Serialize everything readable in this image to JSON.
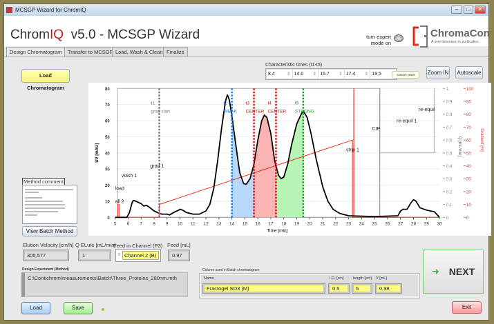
{
  "window": {
    "title": "MCSGP Wizard for ChromIQ",
    "minimize": "–",
    "maximize": "□",
    "close": "✕"
  },
  "header": {
    "app_name_pre": "Chrom",
    "app_name_iq": "IQ",
    "app_version": "  v5.0 - MCSGP Wizard",
    "expert_toggle_label_1": "turn expert",
    "expert_toggle_label_2": "mode on",
    "expert_mode_on": false,
    "brand_name": "ChromaCon",
    "brand_tagline": "A new dimension in purification"
  },
  "tabs": [
    {
      "label": "Design Chromatogram",
      "active": true
    },
    {
      "label": "Transfer to MCSGP"
    },
    {
      "label": "Load, Wash & Clean"
    },
    {
      "label": "Finalize"
    }
  ],
  "toolbar": {
    "load_chromatogram": "Load Chromatogram",
    "char_times_label": "Characteristic times (t1-t5)",
    "char_times": [
      "8.4",
      "14.0",
      "15.7",
      "17.4",
      "19.5"
    ],
    "reset_cursors": "cursors reset",
    "zoom_in": "Zoom IN",
    "autoscale": "Autoscale"
  },
  "method": {
    "comment_label": "Method comment",
    "view_batch_method": "View Batch Method"
  },
  "params": {
    "elution_velocity_label": "Elution Velocity [cm/h]",
    "elution_velocity": "305.577",
    "q_elute_label": "Q ELute [mL/min]",
    "q_elute": "1",
    "feed_channel_label": "Feed in Channel (P3)",
    "feed_channel": "Channel 2 (B)",
    "feed_label": "Feed [mL]",
    "feed": "0.97"
  },
  "design": {
    "label": "Design Experiment (Method)",
    "path": "C:\\Contichrom\\measurements\\Batch\\Three_Proteins_280nm.mth"
  },
  "column": {
    "label": "Column used in Batch chromatogram",
    "name_label": "Name",
    "name": "Fractogel SO3 (M)",
    "id_label": "I.D. [cm]",
    "id": "0.5",
    "length_label": "length [cm]",
    "length": "5",
    "v_label": "V [mL]",
    "v": "0.98"
  },
  "buttons": {
    "load": "Load",
    "save": "Save",
    "next": "NEXT",
    "exit": "Exit"
  },
  "chart_data": {
    "type": "line",
    "xlabel": "Time [min]",
    "ylabel": "UV [mAU]",
    "y2label": "Q [mL/min]",
    "y3label": "Gradient [%]",
    "xlim": [
      5,
      30
    ],
    "ylim": [
      0,
      80
    ],
    "y2lim": [
      0,
      1
    ],
    "y3lim": [
      0,
      100
    ],
    "xticks": [
      "5",
      "6",
      "7",
      "8",
      "9",
      "10",
      "11",
      "12",
      "13",
      "14",
      "15",
      "16",
      "17",
      "18",
      "19",
      "20",
      "21",
      "22",
      "23",
      "24",
      "25",
      "26",
      "27",
      "28",
      "29",
      "30"
    ],
    "yticks": [
      "0",
      "10",
      "20",
      "30",
      "40",
      "50",
      "60",
      "70",
      "80"
    ],
    "y2ticks": [
      "0",
      "0.1",
      "0.2",
      "0.3",
      "0.4",
      "0.5",
      "0.6",
      "0.7",
      "0.8",
      "0.9",
      "1"
    ],
    "y3ticks": [
      "0",
      "10",
      "20",
      "30",
      "40",
      "50",
      "60",
      "70",
      "80",
      "90",
      "100"
    ],
    "uv": {
      "x": [
        5,
        5.9,
        6.1,
        6.3,
        6.4,
        6.6,
        7,
        7.2,
        7.4,
        7.6,
        8,
        8.4,
        8.6,
        9,
        9.2,
        9.5,
        9.9,
        10,
        10.2,
        10.5,
        11,
        11.5,
        12,
        12.3,
        12.6,
        12.9,
        13.2,
        13.5,
        13.65,
        13.8,
        14,
        14.3,
        14.6,
        14.9,
        15.1,
        15.4,
        15.7,
        16,
        16.3,
        16.5,
        16.7,
        17,
        17.3,
        17.6,
        17.8,
        18,
        18.3,
        18.6,
        19,
        19.4,
        19.55,
        19.8,
        20.1,
        20.5,
        21,
        21.4,
        21.8,
        22.3,
        23,
        25,
        26.8,
        27,
        27.2,
        27.5,
        27.8,
        28,
        28.2,
        28.5,
        29,
        29.6,
        29.9,
        30
      ],
      "y": [
        0,
        0,
        3,
        9,
        10.5,
        10,
        8.5,
        7,
        7.5,
        6.5,
        4,
        2.5,
        2,
        2,
        1.5,
        3,
        4.5,
        5,
        4.5,
        3,
        2,
        2,
        4,
        8,
        18,
        35,
        55,
        72,
        76,
        73,
        63,
        45,
        28,
        21,
        20.5,
        24,
        33,
        48,
        60,
        63.5,
        62,
        52,
        35,
        26,
        24,
        25,
        33,
        45,
        58,
        65,
        65.5,
        62,
        52,
        36,
        19,
        10,
        5,
        2.5,
        1,
        0.5,
        1,
        4,
        5,
        5,
        9,
        11,
        10,
        6,
        4.5,
        3.5,
        1,
        0
      ]
    },
    "gradient": {
      "x": [
        5,
        5.2,
        5.2,
        5.3,
        5.3,
        8.4,
        8.4,
        23.3,
        23.3,
        30
      ],
      "y": [
        0,
        0,
        10,
        10,
        0,
        0,
        10,
        60,
        0,
        0
      ]
    },
    "flow": {
      "x": [
        5.2,
        5.2,
        8.4,
        8.4,
        25.4,
        25.4,
        29.6,
        29.6
      ],
      "y": [
        0,
        1,
        1,
        1,
        1,
        0.5,
        0.5,
        1
      ]
    },
    "cursors": [
      {
        "label": "t1",
        "name": "grad start",
        "x": 8.4,
        "color": "#777777"
      },
      {
        "label": "t2",
        "name": "WEAK",
        "x": 14.0,
        "color": "#1e7be0"
      },
      {
        "label": "t3",
        "name": "CENTER",
        "x": 15.7,
        "color": "#d01818"
      },
      {
        "label": "t4",
        "name": "CENTER",
        "x": 17.4,
        "color": "#d01818"
      },
      {
        "label": "t5",
        "name": "STRONG",
        "x": 19.5,
        "color": "#1a9a2a"
      }
    ],
    "regions": [
      {
        "from": 14.0,
        "to": 15.7,
        "color": "#b8d8fb"
      },
      {
        "from": 15.7,
        "to": 17.4,
        "color": "#fbb4b4"
      },
      {
        "from": 17.4,
        "to": 19.5,
        "color": "#b6f5b6"
      }
    ],
    "phase_markers": [
      {
        "x": 23.4,
        "color": "#e83020"
      },
      {
        "x": 25.4,
        "color": "#f07060"
      }
    ],
    "annotations": [
      {
        "text": "load",
        "x": 5.0,
        "y": 17
      },
      {
        "text": "all 2",
        "x": 5.0,
        "y": 9
      },
      {
        "text": "wash 1",
        "x": 5.5,
        "y": 25
      },
      {
        "text": "grad 1",
        "x": 7.7,
        "y": 31
      },
      {
        "text": "strip 1",
        "x": 22.8,
        "y": 41
      },
      {
        "text": "CIP",
        "x": 24.8,
        "y": 54
      },
      {
        "text": "re-equil 1",
        "x": 26.7,
        "y": 59
      },
      {
        "text": "re-equil",
        "x": 28.4,
        "y": 66
      }
    ]
  },
  "colors": {
    "uv": "#000000",
    "gradient": "#e83020",
    "flow": "#b0b0b0",
    "frame": "#8f8552"
  }
}
